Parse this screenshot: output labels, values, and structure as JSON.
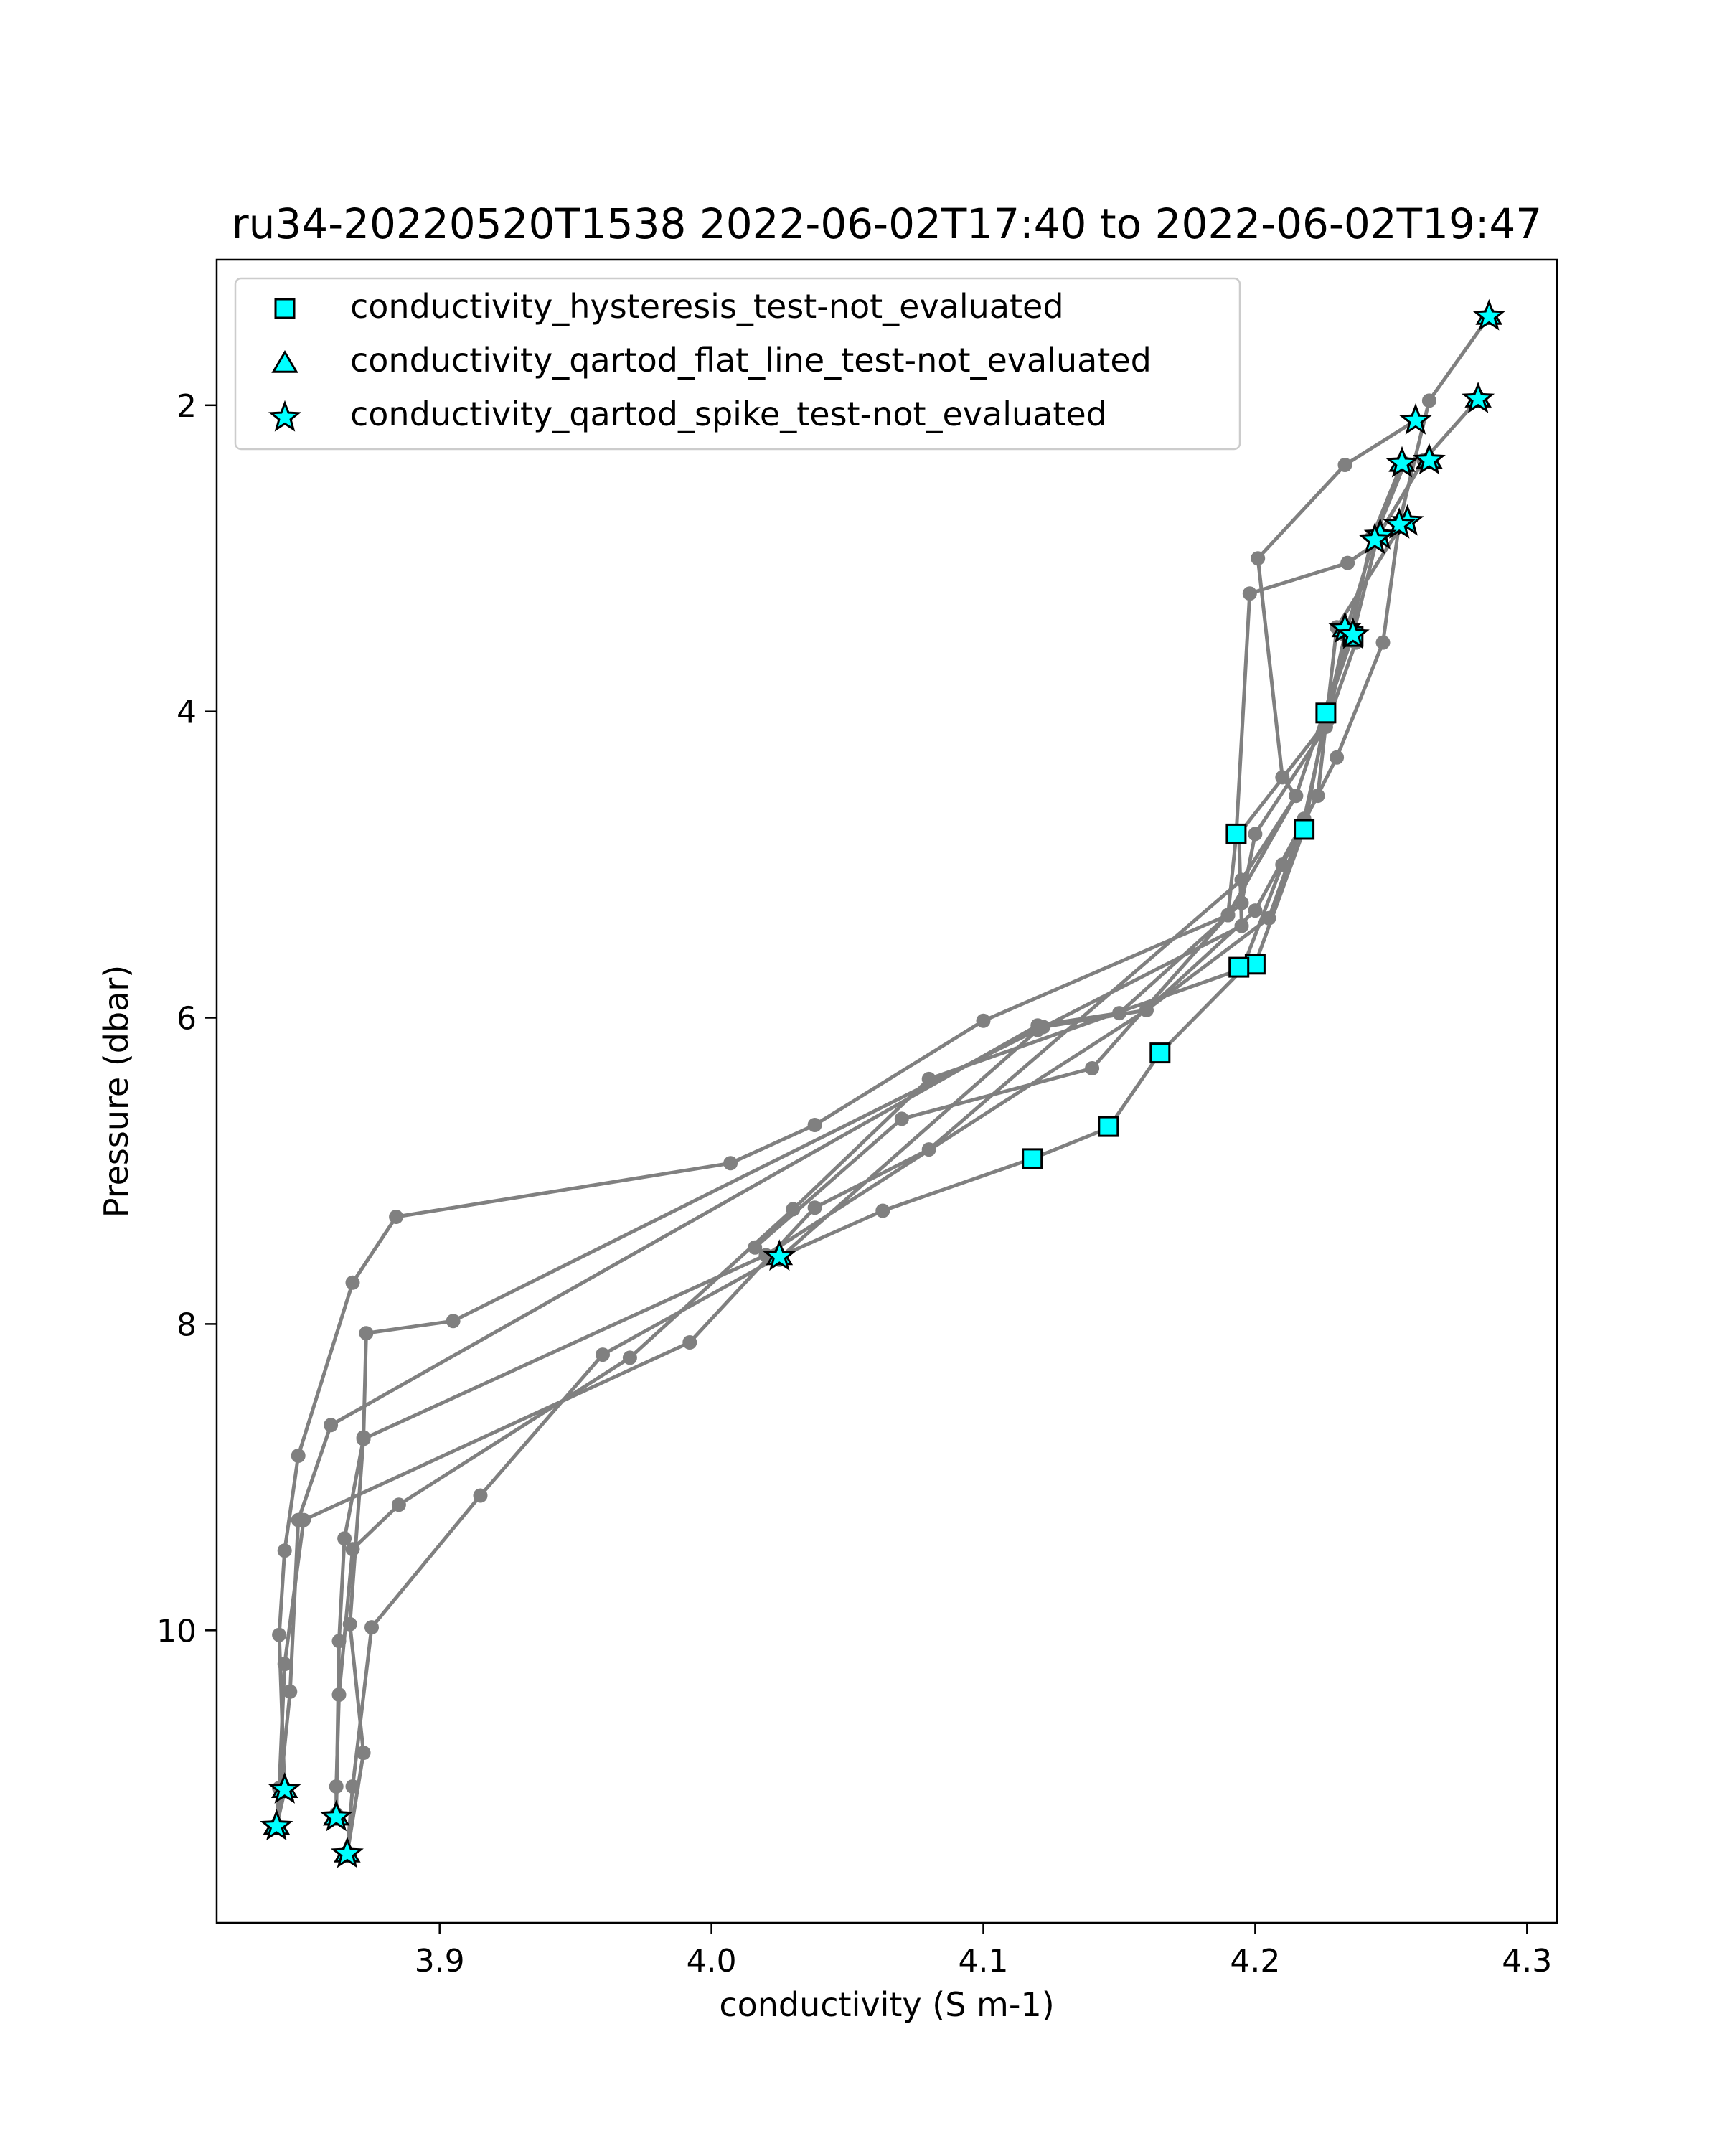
{
  "chart_data": {
    "type": "scatter",
    "title": "ru34-20220520T1538 2022-06-02T17:40 to 2022-06-02T19:47",
    "xlabel": "conductivity (S m-1)",
    "ylabel": "Pressure (dbar)",
    "xlim": [
      3.818,
      4.311
    ],
    "ylim": [
      11.91,
      1.05
    ],
    "y_inverted": true,
    "grid": false,
    "x_ticks": [
      3.9,
      4.0,
      4.1,
      4.2,
      4.3
    ],
    "x_tick_labels": [
      "3.9",
      "4.0",
      "4.1",
      "4.2",
      "4.3"
    ],
    "y_ticks": [
      2,
      4,
      6,
      8,
      10
    ],
    "y_tick_labels": [
      "2",
      "4",
      "6",
      "8",
      "10"
    ],
    "legend": {
      "placement": "upper-left",
      "entries": [
        {
          "label": "conductivity_hysteresis_test-not_evaluated",
          "marker": "square"
        },
        {
          "label": "conductivity_qartod_flat_line_test-not_evaluated",
          "marker": "triangle"
        },
        {
          "label": "conductivity_qartod_spike_test-not_evaluated",
          "marker": "star"
        }
      ]
    },
    "colors": {
      "profile_line": "#808080",
      "marker_fill": "#00ffff",
      "marker_edge": "#000000"
    },
    "profiles": [
      [
        [
          4.286,
          1.42
        ],
        [
          4.264,
          1.97
        ],
        [
          4.253,
          2.77
        ],
        [
          4.247,
          3.55
        ],
        [
          4.23,
          4.3
        ],
        [
          4.21,
          5.0
        ],
        [
          4.195,
          5.69
        ],
        [
          4.165,
          6.23
        ],
        [
          4.146,
          6.72
        ],
        [
          4.118,
          6.92
        ],
        [
          4.063,
          7.26
        ],
        [
          4.025,
          7.56
        ],
        [
          3.96,
          8.2
        ],
        [
          3.915,
          9.12
        ],
        [
          3.875,
          9.98
        ],
        [
          3.868,
          11.02
        ],
        [
          3.866,
          11.46
        ]
      ],
      [
        [
          4.282,
          1.96
        ],
        [
          4.262,
          2.36
        ],
        [
          4.245,
          2.86
        ],
        [
          4.236,
          3.5
        ],
        [
          4.226,
          4.01
        ],
        [
          4.218,
          4.77
        ],
        [
          4.2,
          5.65
        ],
        [
          4.08,
          6.4
        ],
        [
          4.03,
          7.25
        ],
        [
          3.97,
          8.22
        ],
        [
          3.885,
          9.18
        ],
        [
          3.868,
          9.47
        ],
        [
          3.863,
          10.42
        ],
        [
          3.862,
          11.02
        ],
        [
          3.862,
          11.22
        ]
      ],
      [
        [
          4.259,
          2.1
        ],
        [
          4.233,
          2.39
        ],
        [
          4.201,
          3.0
        ],
        [
          4.21,
          4.43
        ],
        [
          4.215,
          4.55
        ],
        [
          4.195,
          5.1
        ],
        [
          4.08,
          6.86
        ],
        [
          4.038,
          7.24
        ],
        [
          3.992,
          8.12
        ],
        [
          3.85,
          9.28
        ],
        [
          3.843,
          10.22
        ],
        [
          3.841,
          11.03
        ],
        [
          3.84,
          11.28
        ]
      ],
      [
        [
          4.256,
          2.76
        ],
        [
          4.234,
          3.03
        ],
        [
          4.198,
          3.23
        ],
        [
          4.193,
          4.81
        ],
        [
          4.19,
          5.33
        ],
        [
          4.1,
          6.02
        ],
        [
          4.038,
          6.7
        ],
        [
          4.007,
          6.95
        ],
        [
          3.884,
          7.3
        ],
        [
          3.868,
          7.73
        ],
        [
          3.848,
          8.86
        ],
        [
          3.843,
          9.48
        ],
        [
          3.841,
          10.03
        ],
        [
          3.843,
          11.05
        ],
        [
          3.84,
          11.28
        ]
      ],
      [
        [
          4.254,
          2.38
        ],
        [
          4.243,
          2.86
        ],
        [
          4.235,
          3.5
        ],
        [
          4.215,
          4.55
        ],
        [
          4.19,
          5.33
        ],
        [
          4.14,
          6.33
        ],
        [
          4.07,
          6.66
        ],
        [
          4.016,
          7.5
        ],
        [
          4.025,
          7.58
        ]
      ],
      [
        [
          4.255,
          2.38
        ],
        [
          4.244,
          2.86
        ],
        [
          4.233,
          3.5
        ],
        [
          4.218,
          4.7
        ],
        [
          4.205,
          5.35
        ],
        [
          4.16,
          5.95
        ],
        [
          4.122,
          6.06
        ],
        [
          3.905,
          7.98
        ],
        [
          3.873,
          8.06
        ],
        [
          3.872,
          8.74
        ],
        [
          3.867,
          9.96
        ],
        [
          3.872,
          10.8
        ],
        [
          3.866,
          11.46
        ]
      ],
      [
        [
          4.237,
          3.55
        ],
        [
          4.226,
          4.1
        ],
        [
          4.2,
          4.8
        ],
        [
          4.195,
          5.25
        ],
        [
          4.15,
          5.97
        ],
        [
          4.12,
          6.05
        ],
        [
          3.86,
          8.66
        ],
        [
          3.848,
          9.28
        ],
        [
          3.845,
          10.4
        ],
        [
          3.84,
          11.28
        ]
      ],
      [
        [
          4.234,
          3.45
        ],
        [
          4.227,
          4.05
        ],
        [
          4.194,
          4.8
        ],
        [
          4.195,
          5.4
        ],
        [
          4.12,
          6.08
        ],
        [
          4.025,
          7.57
        ]
      ],
      [
        [
          4.255,
          2.75
        ],
        [
          4.23,
          3.45
        ],
        [
          4.223,
          4.55
        ],
        [
          4.2,
          5.3
        ],
        [
          4.16,
          5.95
        ],
        [
          4.02,
          7.55
        ],
        [
          3.872,
          8.75
        ],
        [
          3.865,
          9.4
        ],
        [
          3.863,
          10.07
        ],
        [
          3.862,
          11.2
        ]
      ]
    ],
    "hysteresis_points": [
      [
        4.236,
        3.51
      ],
      [
        4.226,
        4.01
      ],
      [
        4.193,
        4.8
      ],
      [
        4.218,
        4.77
      ],
      [
        4.2,
        5.65
      ],
      [
        4.194,
        5.67
      ],
      [
        4.165,
        6.23
      ],
      [
        4.146,
        6.71
      ],
      [
        4.118,
        6.92
      ]
    ],
    "flat_line_points": [
      [
        4.286,
        1.42
      ],
      [
        4.282,
        1.96
      ],
      [
        4.264,
        2.36
      ],
      [
        4.254,
        2.38
      ],
      [
        4.233,
        3.46
      ],
      [
        4.025,
        7.56
      ],
      [
        3.843,
        11.04
      ],
      [
        3.84,
        11.28
      ],
      [
        3.862,
        11.22
      ],
      [
        3.866,
        11.46
      ]
    ],
    "spike_points": [
      [
        4.286,
        1.42
      ],
      [
        4.282,
        1.96
      ],
      [
        4.259,
        2.1
      ],
      [
        4.264,
        2.36
      ],
      [
        4.254,
        2.38
      ],
      [
        4.256,
        2.76
      ],
      [
        4.253,
        2.78
      ],
      [
        4.246,
        2.85
      ],
      [
        4.244,
        2.88
      ],
      [
        4.233,
        3.46
      ],
      [
        4.236,
        3.5
      ],
      [
        4.025,
        7.56
      ],
      [
        3.843,
        11.04
      ],
      [
        3.84,
        11.28
      ],
      [
        3.862,
        11.22
      ],
      [
        3.866,
        11.46
      ]
    ]
  }
}
